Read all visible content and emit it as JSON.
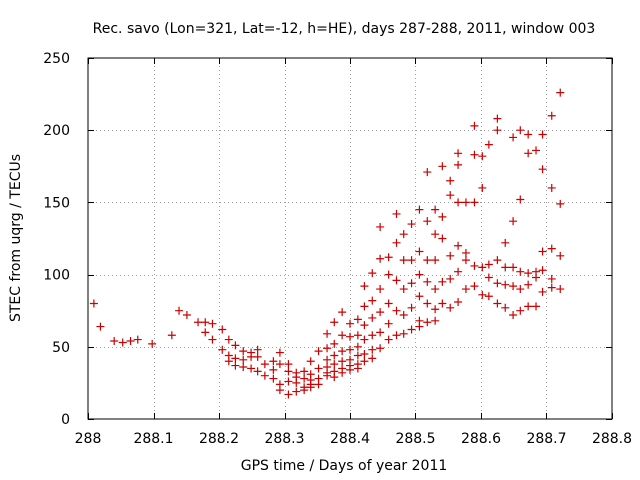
{
  "chart_data": {
    "type": "scatter",
    "title": "Rec. savo (Lon=321, Lat=-12, h=HE), days 287-288, 2011, window 003",
    "xlabel": "GPS time / Days of year 2011",
    "ylabel": "STEC from uqrg / TECUs",
    "xlim": [
      288,
      288.8
    ],
    "ylim": [
      0,
      250
    ],
    "xticks": [
      288,
      288.1,
      288.2,
      288.3,
      288.4,
      288.5,
      288.6,
      288.7,
      288.8
    ],
    "xtick_labels": [
      "288",
      "288.1",
      "288.2",
      "288.3",
      "288.4",
      "288.5",
      "288.6",
      "288.7",
      "288.8"
    ],
    "yticks": [
      0,
      50,
      100,
      150,
      200,
      250
    ],
    "ytick_labels": [
      "0",
      "50",
      "100",
      "150",
      "200",
      "250"
    ],
    "grid": true,
    "marker": "+",
    "color": "#cc0000",
    "points": [
      [
        288.009,
        80
      ],
      [
        288.019,
        64
      ],
      [
        288.04,
        54
      ],
      [
        288.053,
        53
      ],
      [
        288.065,
        54
      ],
      [
        288.076,
        55
      ],
      [
        288.098,
        52
      ],
      [
        288.128,
        58
      ],
      [
        288.139,
        75
      ],
      [
        288.151,
        72
      ],
      [
        288.168,
        67
      ],
      [
        288.179,
        60
      ],
      [
        288.179,
        67
      ],
      [
        288.19,
        66
      ],
      [
        288.19,
        55
      ],
      [
        288.205,
        62
      ],
      [
        288.205,
        48
      ],
      [
        288.215,
        55
      ],
      [
        288.215,
        44
      ],
      [
        288.215,
        40
      ],
      [
        288.225,
        51
      ],
      [
        288.225,
        42
      ],
      [
        288.225,
        37
      ],
      [
        288.237,
        47
      ],
      [
        288.237,
        41
      ],
      [
        288.237,
        36
      ],
      [
        288.249,
        46
      ],
      [
        288.249,
        43
      ],
      [
        288.249,
        35
      ],
      [
        288.259,
        48
      ],
      [
        288.259,
        43
      ],
      [
        288.259,
        33
      ],
      [
        288.27,
        38
      ],
      [
        288.27,
        30
      ],
      [
        288.283,
        40
      ],
      [
        288.283,
        34
      ],
      [
        288.283,
        28
      ],
      [
        288.293,
        46
      ],
      [
        288.293,
        38
      ],
      [
        288.293,
        24
      ],
      [
        288.293,
        20
      ],
      [
        288.306,
        38
      ],
      [
        288.306,
        33
      ],
      [
        288.306,
        26
      ],
      [
        288.306,
        17
      ],
      [
        288.318,
        32
      ],
      [
        288.318,
        29
      ],
      [
        288.318,
        25
      ],
      [
        288.318,
        19
      ],
      [
        288.33,
        33
      ],
      [
        288.33,
        28
      ],
      [
        288.33,
        22
      ],
      [
        288.33,
        20
      ],
      [
        288.34,
        40
      ],
      [
        288.34,
        31
      ],
      [
        288.34,
        27
      ],
      [
        288.34,
        24
      ],
      [
        288.34,
        22
      ],
      [
        288.352,
        47
      ],
      [
        288.352,
        35
      ],
      [
        288.352,
        28
      ],
      [
        288.352,
        24
      ],
      [
        288.365,
        59
      ],
      [
        288.365,
        49
      ],
      [
        288.365,
        41
      ],
      [
        288.365,
        36
      ],
      [
        288.365,
        32
      ],
      [
        288.365,
        30
      ],
      [
        288.376,
        67
      ],
      [
        288.376,
        52
      ],
      [
        288.376,
        44
      ],
      [
        288.376,
        38
      ],
      [
        288.376,
        33
      ],
      [
        288.376,
        29
      ],
      [
        288.388,
        74
      ],
      [
        288.388,
        58
      ],
      [
        288.388,
        47
      ],
      [
        288.388,
        40
      ],
      [
        288.388,
        35
      ],
      [
        288.388,
        32
      ],
      [
        288.4,
        66
      ],
      [
        288.4,
        57
      ],
      [
        288.4,
        48
      ],
      [
        288.4,
        41
      ],
      [
        288.4,
        37
      ],
      [
        288.4,
        34
      ],
      [
        288.412,
        69
      ],
      [
        288.412,
        58
      ],
      [
        288.412,
        50
      ],
      [
        288.412,
        44
      ],
      [
        288.412,
        38
      ],
      [
        288.412,
        35
      ],
      [
        288.422,
        92
      ],
      [
        288.422,
        78
      ],
      [
        288.422,
        65
      ],
      [
        288.422,
        55
      ],
      [
        288.422,
        45
      ],
      [
        288.422,
        40
      ],
      [
        288.434,
        101
      ],
      [
        288.434,
        82
      ],
      [
        288.434,
        70
      ],
      [
        288.434,
        58
      ],
      [
        288.434,
        48
      ],
      [
        288.434,
        42
      ],
      [
        288.446,
        133
      ],
      [
        288.446,
        111
      ],
      [
        288.446,
        90
      ],
      [
        288.446,
        74
      ],
      [
        288.446,
        60
      ],
      [
        288.446,
        49
      ],
      [
        288.459,
        112
      ],
      [
        288.459,
        100
      ],
      [
        288.459,
        80
      ],
      [
        288.459,
        66
      ],
      [
        288.459,
        55
      ],
      [
        288.471,
        142
      ],
      [
        288.471,
        122
      ],
      [
        288.471,
        96
      ],
      [
        288.471,
        75
      ],
      [
        288.471,
        58
      ],
      [
        288.482,
        128
      ],
      [
        288.482,
        110
      ],
      [
        288.482,
        90
      ],
      [
        288.482,
        72
      ],
      [
        288.482,
        59
      ],
      [
        288.494,
        135
      ],
      [
        288.494,
        110
      ],
      [
        288.494,
        94
      ],
      [
        288.494,
        77
      ],
      [
        288.494,
        62
      ],
      [
        288.506,
        145
      ],
      [
        288.506,
        116
      ],
      [
        288.506,
        100
      ],
      [
        288.506,
        85
      ],
      [
        288.506,
        68
      ],
      [
        288.506,
        64
      ],
      [
        288.518,
        171
      ],
      [
        288.518,
        137
      ],
      [
        288.518,
        110
      ],
      [
        288.518,
        95
      ],
      [
        288.518,
        80
      ],
      [
        288.518,
        67
      ],
      [
        288.53,
        145
      ],
      [
        288.53,
        128
      ],
      [
        288.53,
        110
      ],
      [
        288.53,
        90
      ],
      [
        288.53,
        76
      ],
      [
        288.53,
        68
      ],
      [
        288.541,
        175
      ],
      [
        288.541,
        140
      ],
      [
        288.541,
        125
      ],
      [
        288.541,
        95
      ],
      [
        288.541,
        80
      ],
      [
        288.553,
        165
      ],
      [
        288.553,
        155
      ],
      [
        288.553,
        113
      ],
      [
        288.553,
        97
      ],
      [
        288.553,
        77
      ],
      [
        288.565,
        184
      ],
      [
        288.565,
        176
      ],
      [
        288.565,
        150
      ],
      [
        288.565,
        120
      ],
      [
        288.565,
        102
      ],
      [
        288.565,
        81
      ],
      [
        288.577,
        150
      ],
      [
        288.577,
        115
      ],
      [
        288.577,
        110
      ],
      [
        288.577,
        90
      ],
      [
        288.59,
        203
      ],
      [
        288.59,
        183
      ],
      [
        288.59,
        150
      ],
      [
        288.59,
        106
      ],
      [
        288.59,
        92
      ],
      [
        288.602,
        182
      ],
      [
        288.602,
        160
      ],
      [
        288.602,
        105
      ],
      [
        288.602,
        86
      ],
      [
        288.612,
        190
      ],
      [
        288.612,
        107
      ],
      [
        288.612,
        98
      ],
      [
        288.612,
        85
      ],
      [
        288.625,
        208
      ],
      [
        288.625,
        200
      ],
      [
        288.625,
        110
      ],
      [
        288.625,
        94
      ],
      [
        288.625,
        80
      ],
      [
        288.637,
        122
      ],
      [
        288.637,
        105
      ],
      [
        288.637,
        93
      ],
      [
        288.637,
        77
      ],
      [
        288.649,
        195
      ],
      [
        288.649,
        137
      ],
      [
        288.649,
        105
      ],
      [
        288.649,
        92
      ],
      [
        288.649,
        72
      ],
      [
        288.66,
        200
      ],
      [
        288.66,
        152
      ],
      [
        288.66,
        102
      ],
      [
        288.66,
        90
      ],
      [
        288.66,
        75
      ],
      [
        288.672,
        197
      ],
      [
        288.672,
        184
      ],
      [
        288.672,
        101
      ],
      [
        288.672,
        93
      ],
      [
        288.672,
        78
      ],
      [
        288.684,
        186
      ],
      [
        288.684,
        102
      ],
      [
        288.684,
        98
      ],
      [
        288.684,
        78
      ],
      [
        288.694,
        197
      ],
      [
        288.694,
        173
      ],
      [
        288.694,
        116
      ],
      [
        288.694,
        103
      ],
      [
        288.694,
        88
      ],
      [
        288.708,
        210
      ],
      [
        288.708,
        160
      ],
      [
        288.708,
        118
      ],
      [
        288.708,
        97
      ],
      [
        288.708,
        91
      ],
      [
        288.721,
        226
      ],
      [
        288.721,
        149
      ],
      [
        288.721,
        113
      ],
      [
        288.721,
        90
      ]
    ]
  }
}
